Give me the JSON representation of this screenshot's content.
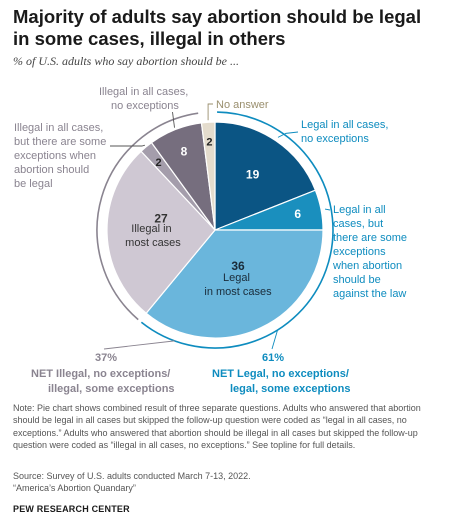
{
  "header": {
    "title": "Majority of adults say abortion should be legal in some cases, illegal in others",
    "subtitle": "% of U.S. adults who say abortion should be ..."
  },
  "chart_data": {
    "type": "pie",
    "title": "Majority of adults say abortion should be legal in some cases, illegal in others",
    "subtitle": "% of U.S. adults who say abortion should be ...",
    "slices": [
      {
        "label": "Legal in all cases, no exceptions",
        "value": 19,
        "value_label": "19",
        "color": "#0b5584",
        "label_color": "#ffffff"
      },
      {
        "label": "Legal in all cases, but there are some exceptions when abortion should be against the law",
        "value": 6,
        "value_label": "6",
        "color": "#1a8fbe",
        "label_color": "#ffffff"
      },
      {
        "label": "Legal in most cases",
        "value": 36,
        "value_label": "36",
        "inner_label": "Legal in most cases",
        "color": "#6ab6dc",
        "label_color": "#1a2c3a"
      },
      {
        "label": "Illegal in most cases",
        "value": 27,
        "value_label": "27",
        "inner_label": "Illegal in most cases",
        "color": "#cfc8d3",
        "label_color": "#333333"
      },
      {
        "label": "Illegal in all cases, but there are some exceptions when abortion should be legal",
        "value": 2,
        "value_label": "2",
        "color": "#a49dab",
        "label_color": "#222222"
      },
      {
        "label": "Illegal in all cases, no exceptions",
        "value": 8,
        "value_label": "8",
        "color": "#766e7e",
        "label_color": "#ffffff"
      },
      {
        "label": "No answer",
        "value": 2,
        "value_label": "2",
        "color": "#e4dccd",
        "label_color": "#222222"
      }
    ],
    "nets": {
      "illegal": {
        "value_label": "37%",
        "label_line1": "NET Illegal, no exceptions/",
        "label_line2": "illegal, some exceptions",
        "color": "#8a8490"
      },
      "legal": {
        "value_label": "61%",
        "label_line1": "NET Legal, no exceptions/",
        "label_line2": "legal, some exceptions",
        "color": "#0e8cbf"
      }
    }
  },
  "outer_labels": {
    "legal_all_no_exc": [
      "Legal in all cases,",
      "no exceptions"
    ],
    "legal_all_some_exc": [
      "Legal in all",
      "cases, but",
      "there are some",
      "exceptions",
      "when abortion",
      "should be",
      "against the law"
    ],
    "illegal_all_some_exc": [
      "Illegal in all cases,",
      "but there are some",
      "exceptions when",
      "abortion should",
      "be legal"
    ],
    "illegal_all_no_exc": [
      "Illegal in all cases,",
      "no exceptions"
    ],
    "no_answer": [
      "No answer"
    ],
    "illegal_most": [
      "Illegal in",
      "most cases"
    ],
    "legal_most": [
      "Legal",
      "in most cases"
    ]
  },
  "colors": {
    "legal_accent": "#0e8cbf",
    "illegal_accent": "#8a8490",
    "no_answer_text": "#9a8f6e"
  },
  "footer": {
    "note": "Note: Pie chart shows combined result of three separate questions. Adults who answered that abortion should be legal in all cases but skipped the follow-up question were coded as “legal in all cases, no exceptions.” Adults who answered that abortion should be illegal in all cases but skipped the follow-up question were coded as “illegal in all cases, no exceptions.” See topline for full details.",
    "source": "Source: Survey of U.S. adults conducted March 7-13, 2022.",
    "report": "“America’s Abortion Quandary”",
    "brand": "PEW RESEARCH CENTER"
  }
}
